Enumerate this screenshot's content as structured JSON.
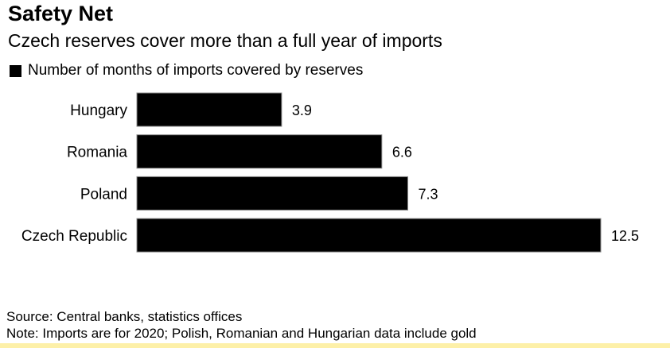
{
  "header": {
    "title": "Safety Net",
    "subtitle": "Czech reserves cover more than a full year of imports"
  },
  "footer": {
    "source": "Source: Central banks, statistics offices",
    "note": "Note: Imports are for 2020; Polish, Romanian and Hungarian data include gold"
  },
  "colors": {
    "bar": "#000000",
    "bar_border": "#888888",
    "strip": "#fdf0a8"
  },
  "chart_data": {
    "type": "bar",
    "orientation": "horizontal",
    "title": "Safety Net",
    "subtitle": "Czech reserves cover more than a full year of imports",
    "legend": [
      "Number of months of imports covered by reserves"
    ],
    "legend_position": "top-left",
    "categories": [
      "Hungary",
      "Romania",
      "Poland",
      "Czech Republic"
    ],
    "values": [
      3.9,
      6.6,
      7.3,
      12.5
    ],
    "value_labels": [
      "3.9",
      "6.6",
      "7.3",
      "12.5"
    ],
    "xlabel": "",
    "ylabel": "",
    "xlim": [
      0,
      12.5
    ],
    "grid": false
  }
}
